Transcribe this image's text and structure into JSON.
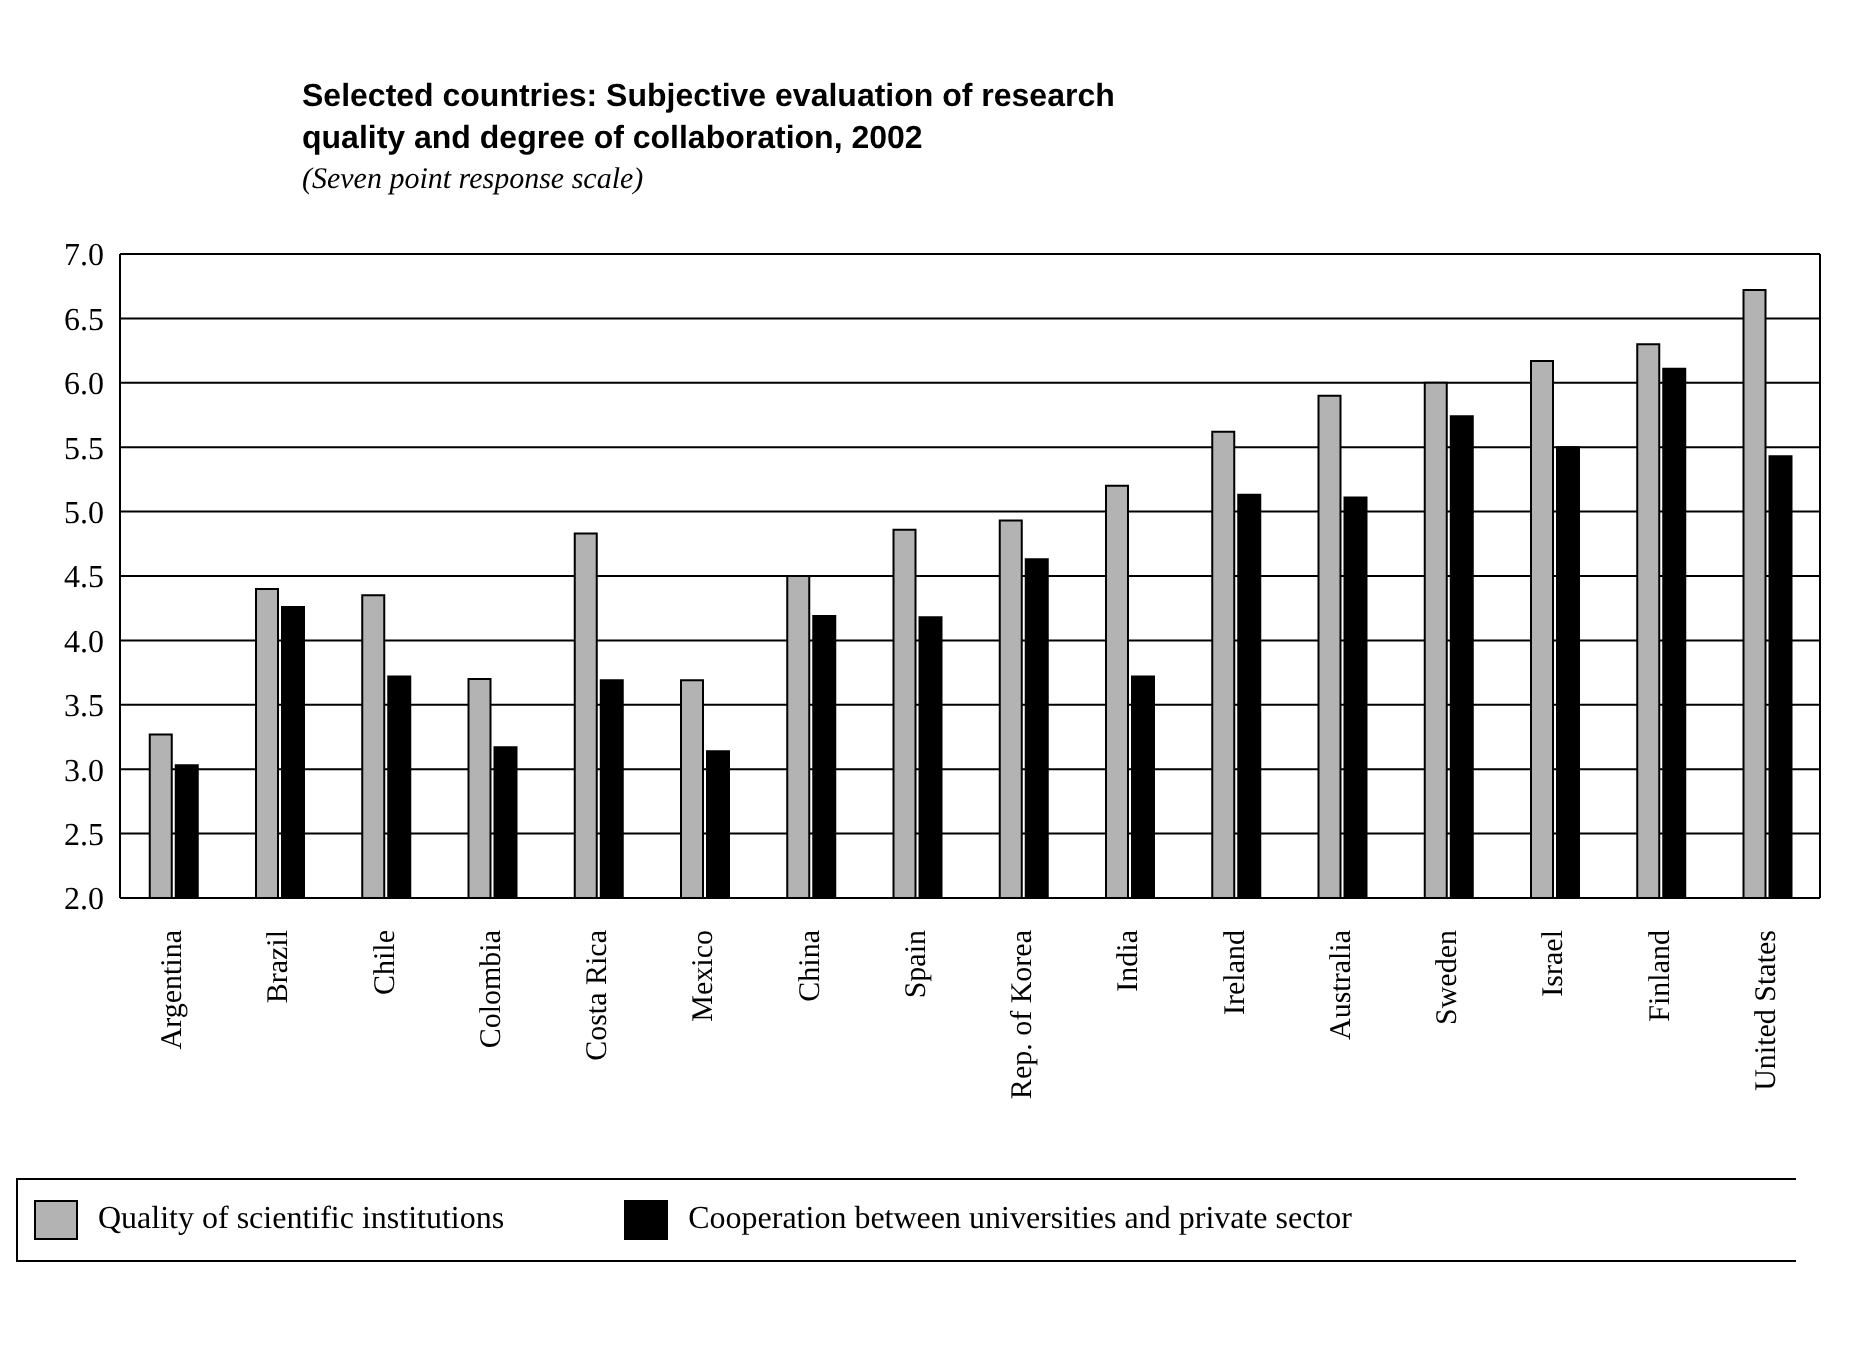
{
  "chart_data": {
    "type": "bar",
    "title": "Selected countries: Subjective evaluation of research quality and degree of collaboration, 2002",
    "subtitle": "(Seven point response scale)",
    "categories": [
      "Argentina",
      "Brazil",
      "Chile",
      "Colombia",
      "Costa Rica",
      "Mexico",
      "China",
      "Spain",
      "Rep. of Korea",
      "India",
      "Ireland",
      "Australia",
      "Sweden",
      "Israel",
      "Finland",
      "United States"
    ],
    "series": [
      {
        "name": "Quality of scientific institutions",
        "color": "#b3b3b3",
        "values": [
          3.27,
          4.4,
          4.35,
          3.7,
          4.83,
          3.69,
          4.5,
          4.86,
          4.93,
          5.2,
          5.62,
          5.9,
          6.0,
          6.17,
          6.3,
          6.72
        ]
      },
      {
        "name": "Cooperation between universities and private sector",
        "color": "#000000",
        "values": [
          3.03,
          4.26,
          3.72,
          3.17,
          3.69,
          3.14,
          4.19,
          4.18,
          4.63,
          3.72,
          5.13,
          5.11,
          5.74,
          5.5,
          6.11,
          5.43
        ]
      }
    ],
    "ylim": [
      2.0,
      7.0
    ],
    "yticks": [
      {
        "value": 2,
        "label": "2.0"
      },
      {
        "value": 2.5,
        "label": "2.5"
      },
      {
        "value": 3,
        "label": "3.0"
      },
      {
        "value": 3.5,
        "label": "3.5"
      },
      {
        "value": 4,
        "label": "4.0"
      },
      {
        "value": 4.5,
        "label": "4.5"
      },
      {
        "value": 5,
        "label": "5.0"
      },
      {
        "value": 5.5,
        "label": "5.5"
      },
      {
        "value": 6,
        "label": "6.0"
      },
      {
        "value": 6.5,
        "label": "6.5"
      },
      {
        "value": 7,
        "label": "7.0"
      }
    ],
    "grid": "y",
    "legend": "bottom"
  }
}
